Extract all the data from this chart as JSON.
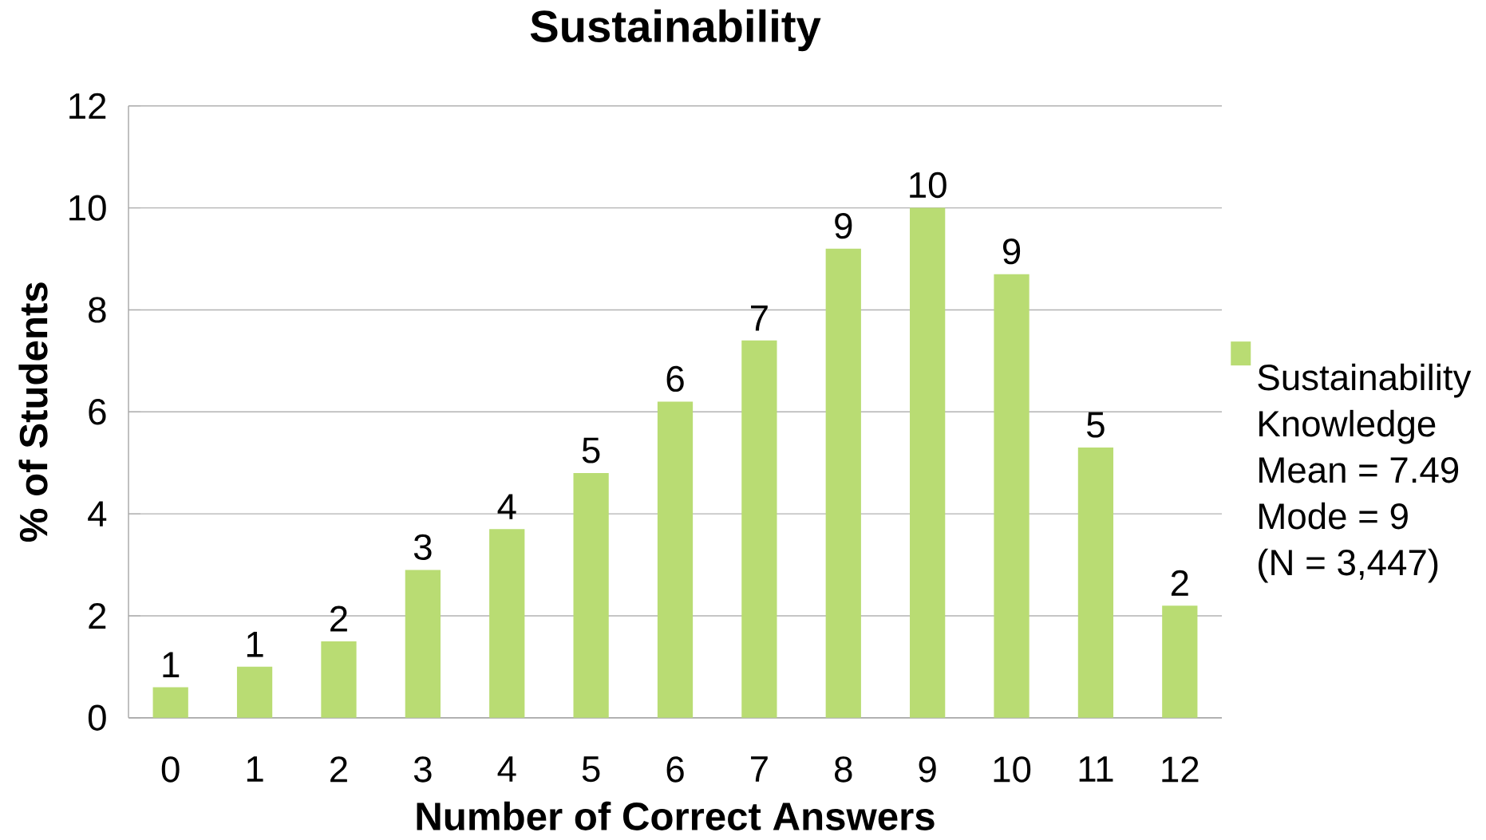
{
  "chart_data": {
    "type": "bar",
    "title": "Sustainability",
    "xlabel": "Number of Correct Answers",
    "ylabel": "% of Students",
    "categories": [
      "0",
      "1",
      "2",
      "3",
      "4",
      "5",
      "6",
      "7",
      "8",
      "9",
      "10",
      "11",
      "12"
    ],
    "series": [
      {
        "name": "Sustainability Knowledge",
        "color": "#b9dc73",
        "values": [
          0.6,
          1.0,
          1.5,
          2.9,
          3.7,
          4.8,
          6.2,
          7.4,
          9.2,
          10.0,
          8.7,
          5.3,
          2.2
        ],
        "value_labels": [
          "1",
          "1",
          "2",
          "3",
          "4",
          "5",
          "6",
          "7",
          "9",
          "10",
          "9",
          "5",
          "2"
        ]
      }
    ],
    "annotations": [
      "Mean = 7.49",
      "Mode = 9",
      "(N = 3,447)"
    ],
    "ylim": [
      0,
      12
    ],
    "yticks": [
      0,
      2,
      4,
      6,
      8,
      10,
      12
    ],
    "grid": "y",
    "legend": "right"
  }
}
